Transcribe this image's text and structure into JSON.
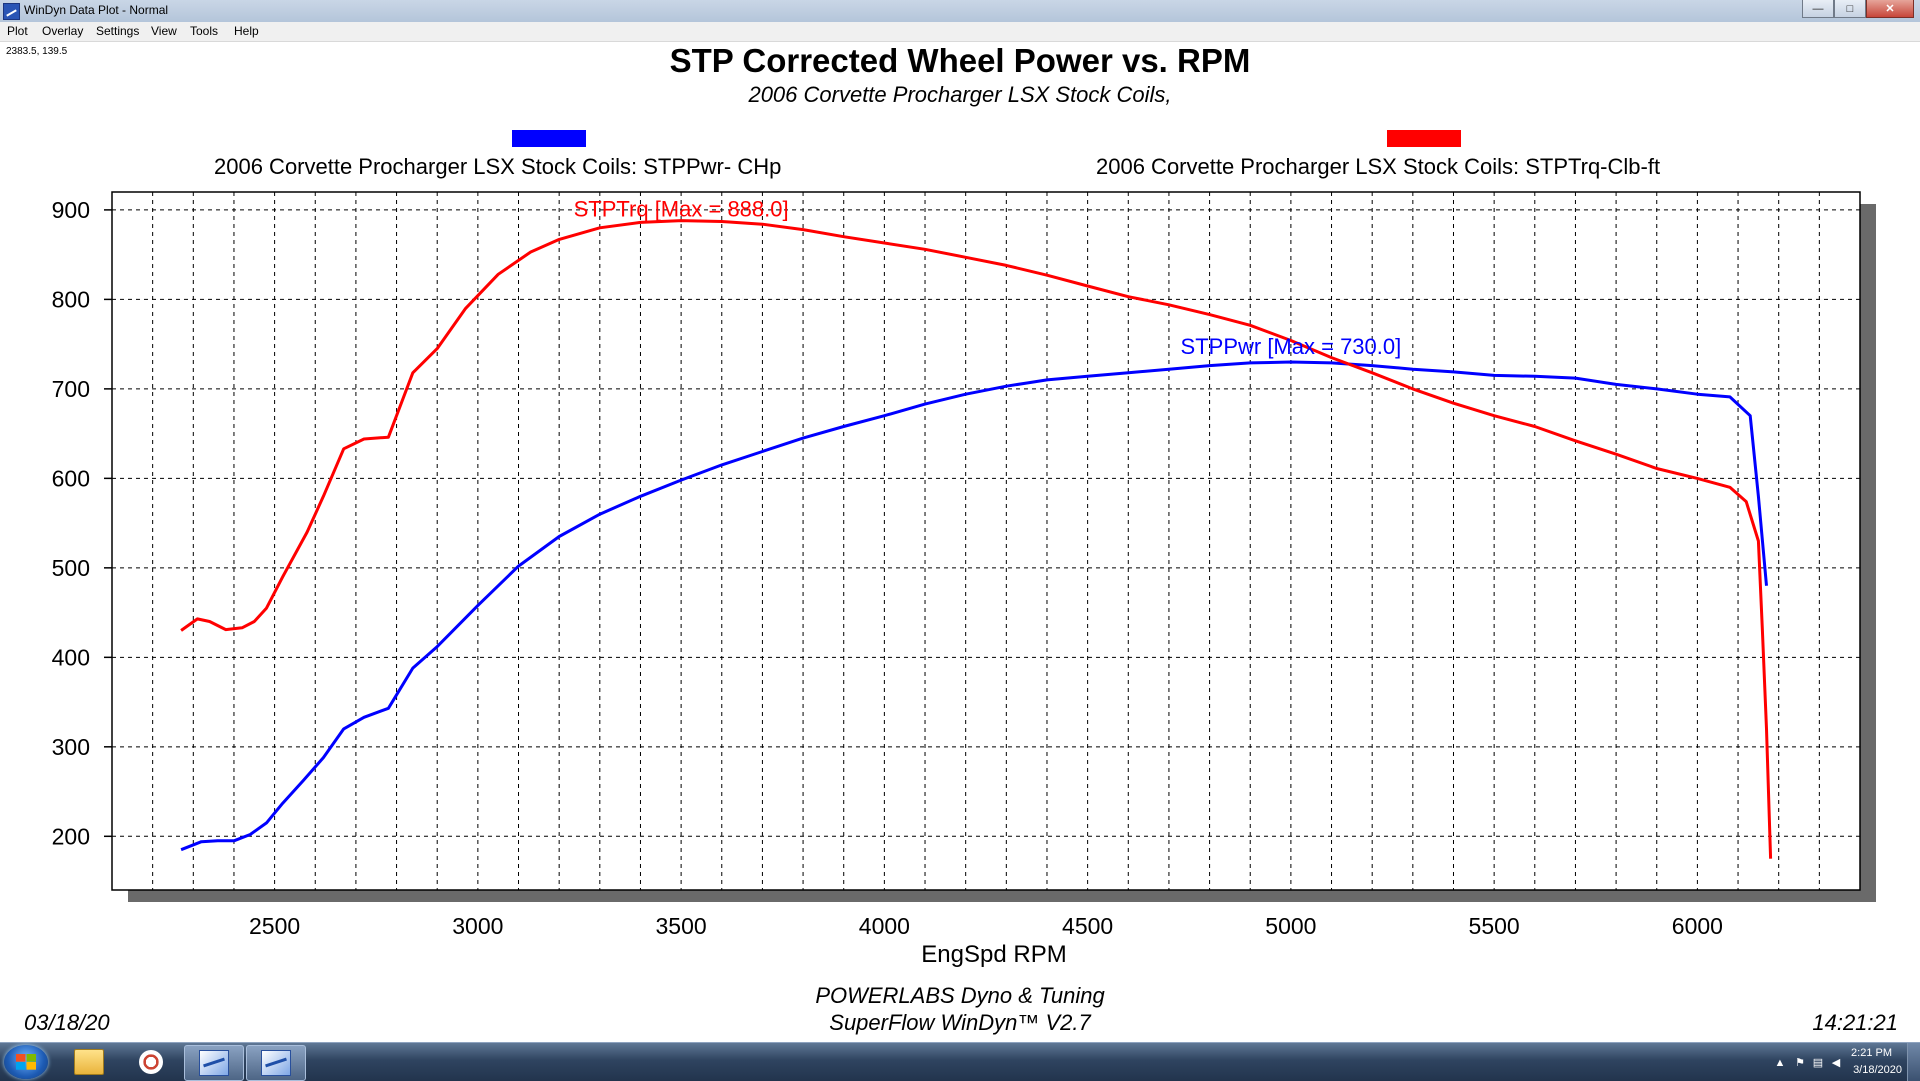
{
  "window": {
    "title": "WinDyn Data Plot - Normal",
    "controls": {
      "minimize": "—",
      "maximize": "□",
      "close": "✕"
    }
  },
  "menu": [
    "Plot",
    "Overlay",
    "Settings",
    "View",
    "Tools",
    "Help"
  ],
  "cursor_readout": "2383.5, 139.5",
  "header": {
    "title": "STP Corrected Wheel Power vs. RPM",
    "subtitle": "2006 Corvette Procharger LSX Stock Coils,"
  },
  "chart_data": {
    "type": "line",
    "xlabel": "EngSpd  RPM",
    "ylabel": "",
    "xlim": [
      2100,
      6400
    ],
    "ylim": [
      140,
      920
    ],
    "x_ticks": [
      2500,
      3000,
      3500,
      4000,
      4500,
      5000,
      5500,
      6000
    ],
    "y_ticks": [
      200,
      300,
      400,
      500,
      600,
      700,
      800,
      900
    ],
    "grid": true,
    "legend_position": "top",
    "series": [
      {
        "name": "2006 Corvette Procharger LSX Stock Coils: STPPwr- CHp",
        "color": "#0000ff",
        "annotation": "STPPwr [Max = 730.0]",
        "x": [
          2270,
          2320,
          2360,
          2400,
          2440,
          2480,
          2520,
          2570,
          2620,
          2670,
          2720,
          2780,
          2840,
          2900,
          3000,
          3100,
          3200,
          3300,
          3400,
          3500,
          3600,
          3700,
          3800,
          3900,
          4000,
          4100,
          4200,
          4300,
          4400,
          4500,
          4600,
          4700,
          4800,
          4900,
          5000,
          5100,
          5200,
          5300,
          5400,
          5500,
          5600,
          5700,
          5800,
          5900,
          6000,
          6080,
          6130,
          6150,
          6170
        ],
        "y": [
          185,
          194,
          195,
          195,
          202,
          215,
          237,
          262,
          288,
          320,
          333,
          343,
          388,
          412,
          458,
          502,
          535,
          560,
          580,
          598,
          615,
          630,
          645,
          658,
          670,
          683,
          694,
          703,
          710,
          714,
          718,
          722,
          726,
          729,
          730,
          729,
          726,
          722,
          719,
          715,
          714,
          712,
          705,
          700,
          694,
          691,
          670,
          580,
          480
        ]
      },
      {
        "name": "2006 Corvette Procharger LSX Stock Coils: STPTrq-Clb-ft",
        "color": "#ff0000",
        "annotation": "STPTrq [Max = 888.0]",
        "x": [
          2270,
          2310,
          2340,
          2380,
          2420,
          2450,
          2480,
          2520,
          2580,
          2620,
          2670,
          2720,
          2780,
          2840,
          2900,
          2970,
          3050,
          3130,
          3200,
          3300,
          3400,
          3500,
          3600,
          3700,
          3800,
          3900,
          4000,
          4100,
          4200,
          4300,
          4400,
          4500,
          4600,
          4700,
          4800,
          4900,
          5000,
          5100,
          5200,
          5300,
          5400,
          5500,
          5600,
          5700,
          5800,
          5900,
          6000,
          6080,
          6120,
          6150,
          6160,
          6170,
          6180
        ],
        "y": [
          430,
          443,
          440,
          431,
          433,
          440,
          455,
          490,
          540,
          580,
          633,
          644,
          646,
          718,
          745,
          790,
          828,
          853,
          867,
          880,
          886,
          888,
          887,
          884,
          878,
          870,
          863,
          856,
          847,
          838,
          827,
          815,
          803,
          794,
          783,
          771,
          754,
          735,
          718,
          700,
          684,
          670,
          658,
          642,
          627,
          611,
          600,
          590,
          574,
          530,
          430,
          320,
          175
        ]
      }
    ]
  },
  "footer": {
    "brand": "POWERLABS Dyno & Tuning",
    "software": "SuperFlow WinDyn™ V2.7",
    "date": "03/18/20",
    "time": "14:21:21"
  },
  "taskbar": {
    "clock_time": "2:21 PM",
    "clock_date": "3/18/2020"
  }
}
